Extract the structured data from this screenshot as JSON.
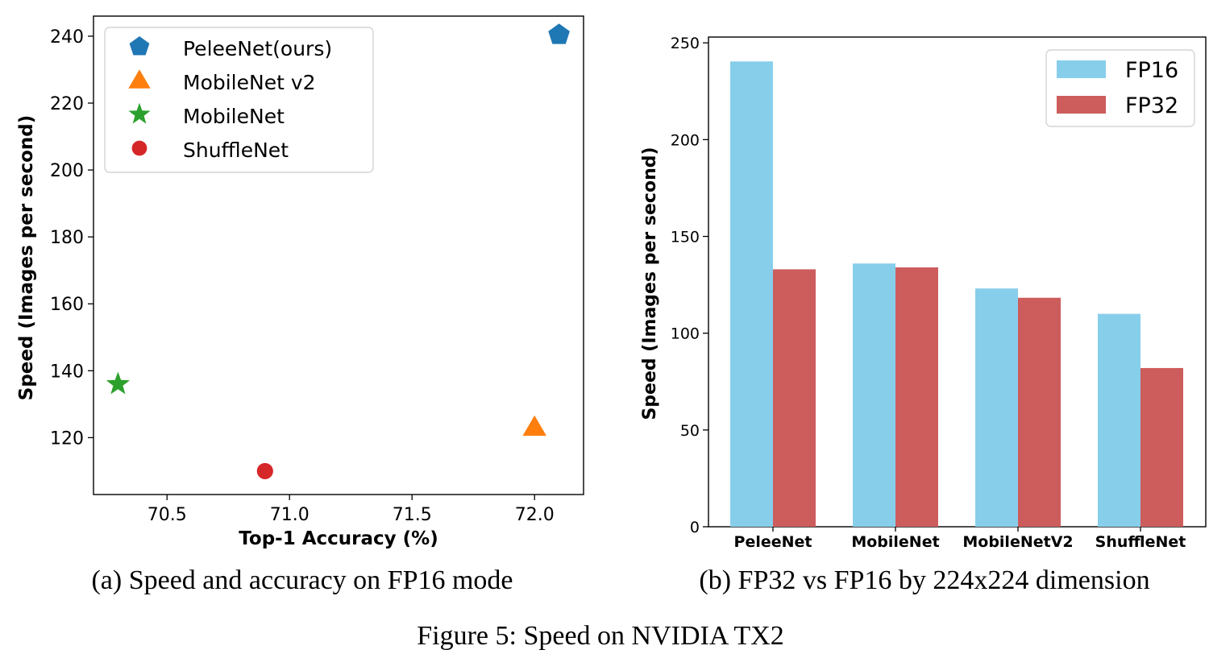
{
  "figure_caption": "Figure 5: Speed on NVIDIA TX2",
  "chart_data": [
    {
      "type": "scatter",
      "caption": "(a) Speed and accuracy on FP16 mode",
      "title": "",
      "xlabel": "Top-1 Accuracy (%)",
      "ylabel": "Speed (Images per second)",
      "xlim": [
        70.2,
        72.2
      ],
      "ylim": [
        103,
        246
      ],
      "xticks": [
        70.5,
        71.0,
        71.5,
        72.0
      ],
      "xtick_labels": [
        "70.5",
        "71.0",
        "71.5",
        "72.0"
      ],
      "yticks": [
        120,
        140,
        160,
        180,
        200,
        220,
        240
      ],
      "ytick_labels": [
        "120",
        "140",
        "160",
        "180",
        "200",
        "220",
        "240"
      ],
      "grid": false,
      "legend_position": "top-left",
      "series": [
        {
          "name": "PeleeNet(ours)",
          "marker": "pentagon",
          "color": "#1f77b4",
          "x": [
            72.1
          ],
          "y": [
            240.4
          ]
        },
        {
          "name": "MobileNet v2",
          "marker": "triangle",
          "color": "#ff7f0e",
          "x": [
            72.0
          ],
          "y": [
            123.1
          ]
        },
        {
          "name": "MobileNet",
          "marker": "star",
          "color": "#2ca02c",
          "x": [
            70.3
          ],
          "y": [
            136.0
          ]
        },
        {
          "name": "ShuffleNet",
          "marker": "circle",
          "color": "#d62728",
          "x": [
            70.9
          ],
          "y": [
            110.0
          ]
        }
      ]
    },
    {
      "type": "bar",
      "caption": "(b) FP32 vs FP16 by 224x224 dimension",
      "title": "",
      "xlabel": "",
      "ylabel": "Speed (Images per second)",
      "ylim": [
        0,
        253
      ],
      "yticks": [
        0,
        50,
        100,
        150,
        200,
        250
      ],
      "ytick_labels": [
        "0",
        "50",
        "100",
        "150",
        "200",
        "250"
      ],
      "grid": false,
      "legend_position": "top-right",
      "categories": [
        "PeleeNet",
        "MobileNet",
        "MobileNetV2",
        "ShuffleNet"
      ],
      "series": [
        {
          "name": "FP16",
          "color": "#87ceeb",
          "values": [
            240.4,
            136.0,
            123.1,
            110.0
          ]
        },
        {
          "name": "FP32",
          "color": "#cd5c5c",
          "values": [
            133.0,
            134.0,
            118.3,
            82.0
          ]
        }
      ]
    }
  ]
}
